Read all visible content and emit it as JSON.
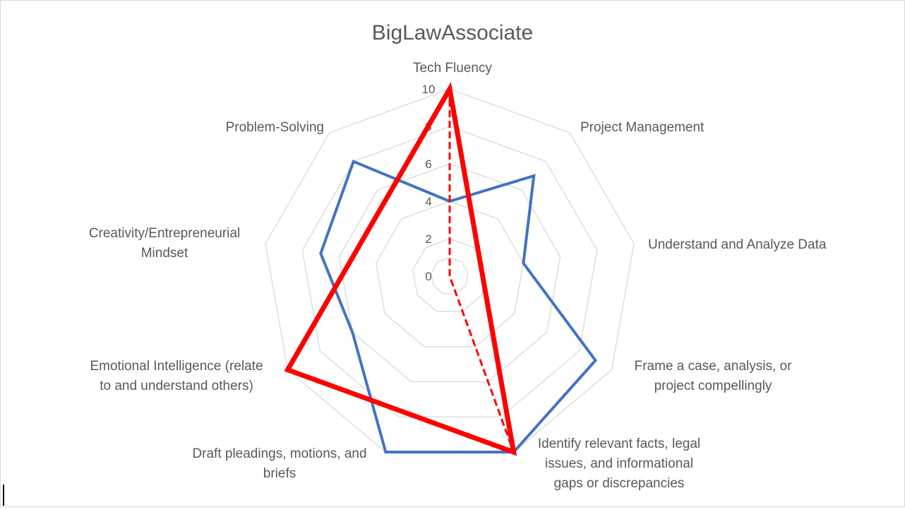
{
  "chart_data": {
    "type": "radar",
    "title": "BigLawAssociate",
    "axes": [
      "Tech Fluency",
      "Project Management",
      "Understand and Analyze Data",
      "Frame a case, analysis, or project compellingly",
      "Identify relevant facts, legal issues, and informational gaps or discrepancies",
      "Draft pleadings, motions, and briefs",
      "Emotional Intelligence (relate to and understand others)",
      "Creativity/Entrepreneurial Mindset",
      "Problem-Solving"
    ],
    "axis_label_lines": [
      [
        "Tech Fluency"
      ],
      [
        "Project Management"
      ],
      [
        "Understand and Analyze Data"
      ],
      [
        "Frame a case, analysis, or",
        "project compellingly"
      ],
      [
        "Identify relevant facts, legal",
        "issues, and informational",
        "gaps or discrepancies"
      ],
      [
        "Draft pleadings, motions, and",
        "briefs"
      ],
      [
        "Emotional Intelligence (relate",
        "to and understand others)"
      ],
      [
        "Creativity/Entrepreneurial",
        "Mindset"
      ],
      [
        "Problem-Solving"
      ]
    ],
    "ticks": [
      "0",
      "2",
      "4",
      "6",
      "8",
      "10"
    ],
    "range": [
      0,
      10
    ],
    "grid": true,
    "series": [
      {
        "values": [
          4,
          7,
          4,
          9,
          10,
          10,
          6,
          7,
          8
        ],
        "color": "#4472C4",
        "style": "solid"
      },
      {
        "values": [
          10,
          0,
          0,
          0,
          10,
          0,
          0,
          0,
          0
        ],
        "color": "#FF0000",
        "style": "dashed"
      },
      {
        "values": [
          10,
          null,
          null,
          null,
          10,
          null,
          10,
          null,
          null
        ],
        "color": "#FF0000",
        "style": "solid-thick"
      }
    ]
  }
}
